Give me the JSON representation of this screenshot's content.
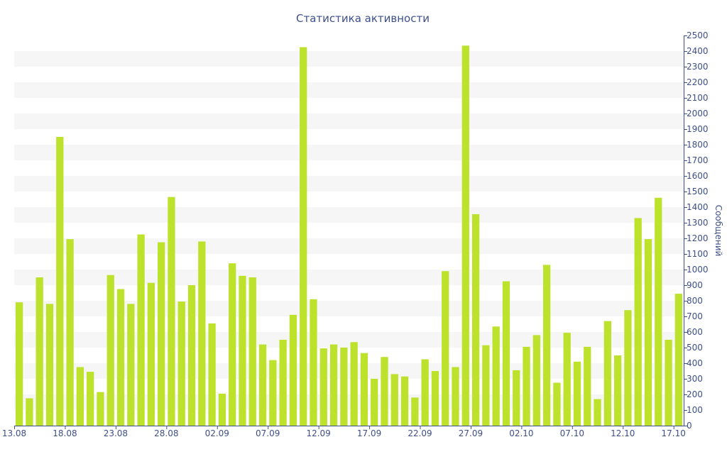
{
  "colors": {
    "bar": "#bde22c",
    "text": "#3d4f8a",
    "axis": "#3d4f8a",
    "band": "#f6f6f6"
  },
  "chart_data": {
    "type": "bar",
    "title": "Статистика активности",
    "ylabel": "Сообщений",
    "xlabel": "",
    "ylim": [
      0,
      2500
    ],
    "y_ticks": [
      0,
      100,
      200,
      300,
      400,
      500,
      600,
      700,
      800,
      900,
      1000,
      1100,
      1200,
      1300,
      1400,
      1500,
      1600,
      1700,
      1800,
      1900,
      2000,
      2100,
      2200,
      2300,
      2400,
      2500
    ],
    "y_axis_position": "right",
    "grid": "horizontal-bands",
    "x_ticks": [
      {
        "label": "13.08",
        "category": "13.08"
      },
      {
        "label": "18.08",
        "category": "18.08"
      },
      {
        "label": "23.08",
        "category": "23.08"
      },
      {
        "label": "28.08",
        "category": "28.08"
      },
      {
        "label": "02.09",
        "category": "02.09"
      },
      {
        "label": "07.09",
        "category": "07.09"
      },
      {
        "label": "12.09",
        "category": "12.09"
      },
      {
        "label": "17.09",
        "category": "17.09"
      },
      {
        "label": "22.09",
        "category": "22.09"
      },
      {
        "label": "27.09",
        "category": "27.09"
      },
      {
        "label": "02.10",
        "category": "02.10"
      },
      {
        "label": "07.10",
        "category": "07.10"
      },
      {
        "label": "12.10",
        "category": "12.10"
      },
      {
        "label": "17.10",
        "category": "17.10"
      }
    ],
    "categories": [
      "13.08",
      "14.08",
      "15.08",
      "16.08",
      "17.08",
      "18.08",
      "19.08",
      "20.08",
      "21.08",
      "22.08",
      "23.08",
      "24.08",
      "25.08",
      "26.08",
      "27.08",
      "28.08",
      "29.08",
      "30.08",
      "31.08",
      "01.09",
      "02.09",
      "03.09",
      "04.09",
      "05.09",
      "06.09",
      "07.09",
      "08.09",
      "09.09",
      "10.09",
      "11.09",
      "12.09",
      "13.09",
      "14.09",
      "15.09",
      "16.09",
      "17.09",
      "18.09",
      "19.09",
      "20.09",
      "21.09",
      "22.09",
      "23.09",
      "24.09",
      "25.09",
      "26.09",
      "27.09",
      "28.09",
      "29.09",
      "30.09",
      "01.10",
      "02.10",
      "03.10",
      "04.10",
      "05.10",
      "06.10",
      "07.10",
      "08.10",
      "09.10",
      "10.10",
      "11.10",
      "12.10",
      "13.10",
      "14.10",
      "15.10",
      "16.10",
      "17.10"
    ],
    "values": [
      790,
      175,
      950,
      780,
      1850,
      1195,
      375,
      345,
      215,
      965,
      875,
      780,
      1225,
      915,
      1175,
      1465,
      795,
      900,
      1180,
      655,
      205,
      1040,
      960,
      950,
      520,
      420,
      550,
      710,
      2425,
      810,
      495,
      520,
      500,
      535,
      465,
      300,
      440,
      330,
      315,
      180,
      425,
      350,
      990,
      375,
      2435,
      1355,
      515,
      635,
      925,
      355,
      505,
      580,
      1030,
      275,
      595,
      410,
      505,
      170,
      670,
      450,
      740,
      1330,
      1195,
      1460,
      550,
      845
    ]
  }
}
